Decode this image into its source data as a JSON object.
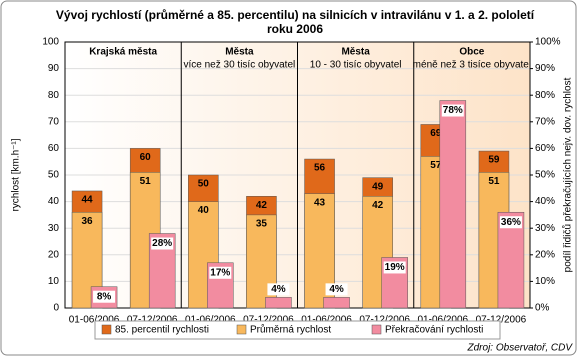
{
  "chart_data": {
    "type": "bar",
    "title": [
      "Vývoj rychlostí (průměrné a 85. percentilu) na silnicích v intravilánu v 1. a 2. pololetí",
      "roku 2006"
    ],
    "y_label": "rychlost [km.h⁻¹]",
    "y2_label": "podíl řidičů překračujících nejv. dov. rychlost",
    "source": "Zdroj: Observatoř, CDV",
    "groups": [
      {
        "name": "Krajská města"
      },
      {
        "name": "Města",
        "subtitle": "více než 30 tisíc obyvatel"
      },
      {
        "name": "Města",
        "subtitle": "10 - 30 tisíc obyvatel"
      },
      {
        "name": "Obce",
        "subtitle": "méně než 3 tisíce obyvatel"
      }
    ],
    "categories": [
      "01-06/2006",
      "07-12/2006",
      "01-06/2006",
      "07-12/2006",
      "01-06/2006",
      "07-12/2006",
      "01-06/2006",
      "07-12/2006"
    ],
    "series": [
      {
        "name": "85. percentil rychlosti",
        "color": "#e0691a",
        "values": [
          44,
          60,
          50,
          42,
          56,
          49,
          69,
          59
        ]
      },
      {
        "name": "Průměrná rychlost",
        "color": "#f8b85c",
        "values": [
          36,
          51,
          40,
          35,
          43,
          42,
          57,
          51
        ]
      },
      {
        "name": "Překračování rychlosti",
        "color": "#f28ca0",
        "axis": "y2",
        "values": [
          8,
          28,
          17,
          4,
          4,
          19,
          78,
          36
        ],
        "value_labels": [
          "8%",
          "28%",
          "17%",
          "4%",
          "4%",
          "19%",
          "78%",
          "36%"
        ]
      }
    ],
    "ylim": [
      0,
      100
    ],
    "yticks": [
      0,
      10,
      20,
      30,
      40,
      50,
      60,
      70,
      80,
      90,
      100
    ],
    "y2lim": [
      0,
      100
    ],
    "y2ticks": [
      {
        "value": 0,
        "label": "0%"
      },
      {
        "value": 10,
        "label": "10%"
      },
      {
        "value": 20,
        "label": "20%"
      },
      {
        "value": 30,
        "label": "30%"
      },
      {
        "value": 40,
        "label": "40%"
      },
      {
        "value": 50,
        "label": "50%"
      },
      {
        "value": 60,
        "label": "60%"
      },
      {
        "value": 70,
        "label": "70%"
      },
      {
        "value": 80,
        "label": "80%"
      },
      {
        "value": 90,
        "label": "90%"
      },
      {
        "value": 100,
        "label": "100%"
      }
    ]
  }
}
